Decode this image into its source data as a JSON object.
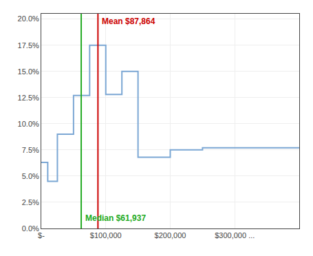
{
  "chart_data": {
    "type": "line",
    "x": [
      0,
      10000,
      10000,
      25000,
      25000,
      50000,
      50000,
      75000,
      75000,
      100000,
      100000,
      125000,
      125000,
      150000,
      150000,
      200000,
      200000,
      250000,
      250000,
      400000
    ],
    "values": [
      0.063,
      0.063,
      0.045,
      0.045,
      0.09,
      0.09,
      0.127,
      0.127,
      0.175,
      0.175,
      0.128,
      0.128,
      0.15,
      0.15,
      0.068,
      0.068,
      0.075,
      0.075,
      0.077,
      0.077
    ],
    "color": "#7BA7D4",
    "xlim": [
      0,
      400000
    ],
    "ylim": [
      0,
      0.205
    ],
    "xticks": [
      {
        "value": 0,
        "label": "$-"
      },
      {
        "value": 100000,
        "label": "$100,000"
      },
      {
        "value": 200000,
        "label": "$200,000"
      },
      {
        "value": 300000,
        "label": "$300,000 ..."
      }
    ],
    "yticks": [
      {
        "value": 0.0,
        "label": "0.0%"
      },
      {
        "value": 0.025,
        "label": "2.5%"
      },
      {
        "value": 0.05,
        "label": "5.0%"
      },
      {
        "value": 0.075,
        "label": "7.5%"
      },
      {
        "value": 0.1,
        "label": "10.0%"
      },
      {
        "value": 0.125,
        "label": "12.5%"
      },
      {
        "value": 0.15,
        "label": "15.0%"
      },
      {
        "value": 0.175,
        "label": "17.5%"
      },
      {
        "value": 0.2,
        "label": "20.0%"
      }
    ],
    "grid": true,
    "annotations": [
      {
        "text": "Mean $87,864",
        "x": 87864,
        "color": "#CC0000"
      },
      {
        "text": "Median $61,937",
        "x": 61937,
        "color": "#22AA22"
      }
    ]
  }
}
